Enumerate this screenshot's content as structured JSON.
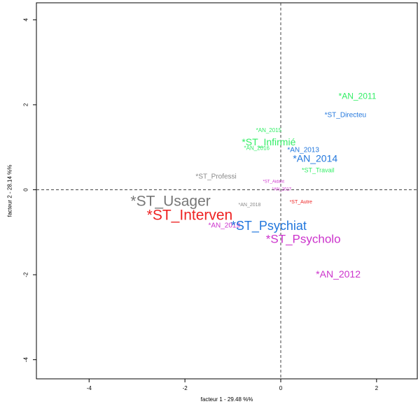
{
  "chart_data": {
    "type": "scatter",
    "title": "",
    "xlabel": "facteur  1  - 29.48 %%",
    "ylabel": "facteur  2  - 28.14 %%",
    "xlim": [
      -5.1,
      2.85
    ],
    "ylim": [
      -4.45,
      4.4
    ],
    "x_ticks": [
      {
        "value": -4,
        "label": "-4"
      },
      {
        "value": -2,
        "label": "-2"
      },
      {
        "value": 0,
        "label": "0"
      },
      {
        "value": 2,
        "label": "2"
      }
    ],
    "y_ticks": [
      {
        "value": 4,
        "label": "4"
      },
      {
        "value": 2,
        "label": "2"
      },
      {
        "value": 0,
        "label": "0"
      },
      {
        "value": -2,
        "label": "-2"
      },
      {
        "value": -4,
        "label": "-4"
      }
    ],
    "grid": false,
    "reference_lines": {
      "x": 0,
      "y": 0,
      "style": "dashed"
    },
    "points": [
      {
        "label": "*AN_2011",
        "x": 1.6,
        "y": 2.2,
        "color": "#33ee66",
        "size": 12
      },
      {
        "label": "*ST_Directeu",
        "x": 1.35,
        "y": 1.75,
        "color": "#2277dd",
        "size": 10
      },
      {
        "label": "*AN_2015",
        "x": -0.25,
        "y": 1.4,
        "color": "#33ee66",
        "size": 8
      },
      {
        "label": "*ST_Infirmié",
        "x": -0.25,
        "y": 1.13,
        "color": "#33ee66",
        "size": 14
      },
      {
        "label": "*AN_2016",
        "x": -0.5,
        "y": 0.98,
        "color": "#33ee66",
        "size": 8
      },
      {
        "label": "*AN_2013",
        "x": 0.47,
        "y": 0.93,
        "color": "#2277dd",
        "size": 10
      },
      {
        "label": "*AN_2014",
        "x": 0.72,
        "y": 0.74,
        "color": "#2277dd",
        "size": 14
      },
      {
        "label": "*ST_Travail",
        "x": 0.78,
        "y": 0.46,
        "color": "#33ee66",
        "size": 9
      },
      {
        "label": "*ST_Professi",
        "x": -1.35,
        "y": 0.3,
        "color": "#888888",
        "size": 10
      },
      {
        "label": "*ST_Aidant",
        "x": -0.15,
        "y": 0.18,
        "color": "#cc33cc",
        "size": 6
      },
      {
        "label": "*AN_2017",
        "x": 0.02,
        "y": 0.0,
        "color": "#cc33cc",
        "size": 6
      },
      {
        "label": "*ST_Usager",
        "x": -2.3,
        "y": -0.27,
        "color": "#777777",
        "size": 21
      },
      {
        "label": "*ST_Autre",
        "x": 0.42,
        "y": -0.3,
        "color": "#ee2222",
        "size": 7
      },
      {
        "label": "*AN_2018",
        "x": -0.65,
        "y": -0.36,
        "color": "#888888",
        "size": 7
      },
      {
        "label": "*ST_Interven",
        "x": -1.9,
        "y": -0.6,
        "color": "#ee2222",
        "size": 21
      },
      {
        "label": "*AN_2019",
        "x": -1.18,
        "y": -0.85,
        "color": "#cc33cc",
        "size": 10
      },
      {
        "label": "*ST_Psychiat",
        "x": -0.25,
        "y": -0.85,
        "color": "#2277dd",
        "size": 18
      },
      {
        "label": "*ST_Psycholo",
        "x": 0.47,
        "y": -1.16,
        "color": "#cc33cc",
        "size": 17
      },
      {
        "label": "*AN_2012",
        "x": 1.2,
        "y": -1.98,
        "color": "#cc33cc",
        "size": 14
      }
    ]
  }
}
